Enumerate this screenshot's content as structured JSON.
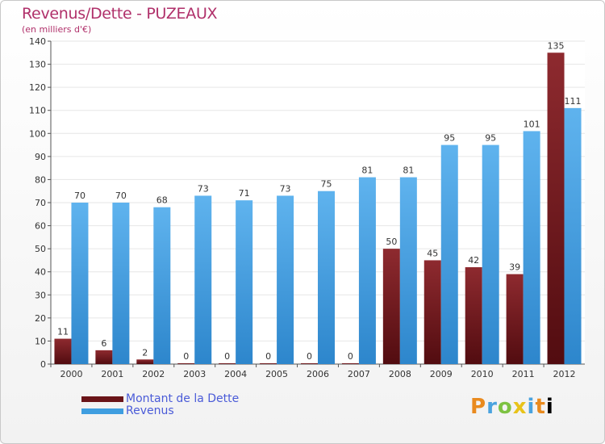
{
  "chart_data": {
    "type": "bar",
    "title": "Revenus/Dette - PUZEAUX",
    "subtitle": "(en milliers d'€)",
    "categories": [
      "2000",
      "2001",
      "2002",
      "2003",
      "2004",
      "2005",
      "2006",
      "2007",
      "2008",
      "2009",
      "2010",
      "2011",
      "2012"
    ],
    "series": [
      {
        "name": "Montant de la Dette",
        "color": "#7a1e22",
        "values": [
          11,
          6,
          2,
          0,
          0,
          0,
          0,
          0,
          50,
          45,
          42,
          39,
          135
        ]
      },
      {
        "name": "Revenus",
        "color": "#4aa3e0",
        "values": [
          70,
          70,
          68,
          73,
          71,
          73,
          75,
          81,
          81,
          95,
          95,
          101,
          111
        ]
      }
    ],
    "ylim": [
      0,
      140
    ],
    "yticks": [
      0,
      10,
      20,
      30,
      40,
      50,
      60,
      70,
      80,
      90,
      100,
      110,
      120,
      130,
      140
    ],
    "grid": true,
    "legend_position": "bottom-left"
  },
  "brand": {
    "letters": [
      "P",
      "r",
      "o",
      "x",
      "i",
      "t",
      "i"
    ]
  }
}
